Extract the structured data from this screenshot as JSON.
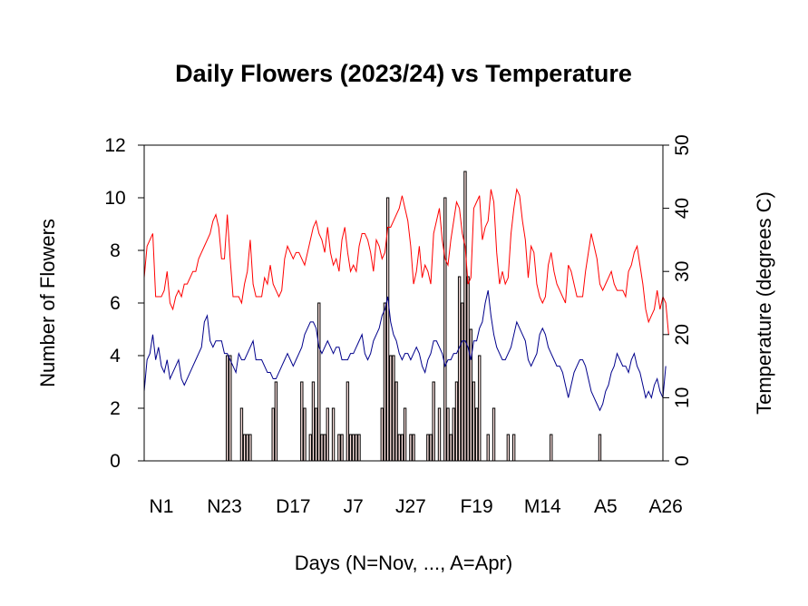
{
  "chart_data": {
    "type": "bar+line",
    "title": "Daily Flowers (2023/24) vs Temperature",
    "xlabel": "Days (N=Nov, ..., A=Apr)",
    "ylabel_left": "Number of Flowers",
    "ylabel_right": "Temperature (degrees C)",
    "ylim_left": [
      0,
      12
    ],
    "yticks_left": [
      "0",
      "2",
      "4",
      "6",
      "8",
      "10",
      "12"
    ],
    "ylim_right": [
      0,
      50
    ],
    "yticks_right": [
      "0",
      "10",
      "20",
      "30",
      "40",
      "50"
    ],
    "xlim": [
      1,
      182
    ],
    "xticks": [
      {
        "day": 7,
        "label": "N1"
      },
      {
        "day": 29,
        "label": "N23"
      },
      {
        "day": 53,
        "label": "D17"
      },
      {
        "day": 74,
        "label": "J7"
      },
      {
        "day": 94,
        "label": "J27"
      },
      {
        "day": 117,
        "label": "F19"
      },
      {
        "day": 140,
        "label": "M14"
      },
      {
        "day": 162,
        "label": "A5"
      },
      {
        "day": 183,
        "label": "A26"
      }
    ],
    "flowers": {
      "name": "Flowers",
      "color_fill": "#ffe4e1",
      "color_border": "#000000",
      "points": [
        [
          30,
          4
        ],
        [
          31,
          4
        ],
        [
          35,
          2
        ],
        [
          36,
          1
        ],
        [
          37,
          1
        ],
        [
          38,
          1
        ],
        [
          46,
          2
        ],
        [
          47,
          3
        ],
        [
          56,
          3
        ],
        [
          57,
          2
        ],
        [
          59,
          1
        ],
        [
          60,
          3
        ],
        [
          61,
          2
        ],
        [
          62,
          6
        ],
        [
          63,
          1
        ],
        [
          64,
          1
        ],
        [
          65,
          2
        ],
        [
          67,
          2
        ],
        [
          69,
          1
        ],
        [
          70,
          1
        ],
        [
          72,
          3
        ],
        [
          73,
          1
        ],
        [
          74,
          1
        ],
        [
          75,
          1
        ],
        [
          76,
          1
        ],
        [
          84,
          2
        ],
        [
          85,
          6
        ],
        [
          86,
          10
        ],
        [
          87,
          4
        ],
        [
          88,
          4
        ],
        [
          89,
          3
        ],
        [
          90,
          1
        ],
        [
          91,
          1
        ],
        [
          92,
          2
        ],
        [
          94,
          1
        ],
        [
          95,
          1
        ],
        [
          100,
          1
        ],
        [
          101,
          1
        ],
        [
          102,
          3
        ],
        [
          104,
          2
        ],
        [
          106,
          10
        ],
        [
          107,
          2
        ],
        [
          108,
          1
        ],
        [
          109,
          2
        ],
        [
          110,
          3
        ],
        [
          111,
          7
        ],
        [
          112,
          6
        ],
        [
          113,
          11
        ],
        [
          114,
          7
        ],
        [
          115,
          5
        ],
        [
          116,
          3
        ],
        [
          117,
          2
        ],
        [
          118,
          4
        ],
        [
          121,
          1
        ],
        [
          123,
          2
        ],
        [
          128,
          1
        ],
        [
          130,
          1
        ],
        [
          143,
          1
        ],
        [
          160,
          1
        ]
      ]
    },
    "series": [
      {
        "color": "#ff0000",
        "values": [
          29,
          34,
          35,
          36,
          26,
          26,
          26,
          27,
          30,
          25,
          24,
          26,
          27,
          26,
          28,
          28,
          29,
          30,
          30,
          32,
          33,
          34,
          35,
          36,
          38,
          39,
          37,
          32,
          32,
          39,
          32,
          26,
          26,
          26,
          25,
          28,
          30,
          35,
          28,
          26,
          26,
          26,
          29,
          28,
          31,
          28,
          27,
          26,
          27,
          32,
          34,
          33,
          32,
          33,
          33,
          32,
          31,
          33,
          35,
          37,
          38,
          36,
          35,
          33,
          37,
          33,
          31,
          32,
          30,
          35,
          37,
          33,
          30,
          31,
          30,
          34,
          36,
          36,
          35,
          33,
          30,
          35,
          34,
          32,
          33,
          37,
          37,
          38,
          39,
          40,
          42,
          40,
          38,
          34,
          28,
          30,
          34,
          29,
          31,
          30,
          28,
          36,
          38,
          40,
          35,
          32,
          31,
          35,
          38,
          41,
          40,
          36,
          34,
          28,
          29,
          40,
          41,
          42,
          35,
          37,
          38,
          43,
          41,
          33,
          28,
          30,
          28,
          29,
          36,
          40,
          43,
          42,
          38,
          35,
          29,
          34,
          33,
          28,
          26,
          25,
          26,
          31,
          33,
          30,
          28,
          27,
          26,
          25,
          31,
          30,
          28,
          26,
          26,
          26,
          30,
          33,
          36,
          34,
          32,
          28,
          27,
          28,
          29,
          30,
          28,
          27,
          27,
          27,
          26,
          30,
          31,
          33,
          34,
          31,
          28,
          24,
          22,
          23,
          24,
          27,
          24,
          26,
          25,
          20
        ]
      },
      {
        "color": "#00008b",
        "values": [
          11,
          16,
          17,
          20,
          16,
          18,
          15,
          14,
          16,
          13,
          14,
          15,
          16,
          13,
          12,
          13,
          14,
          15,
          16,
          17,
          18,
          22,
          23,
          19,
          18,
          19,
          19,
          19,
          17,
          17,
          16,
          15,
          14,
          17,
          16,
          16,
          17,
          18,
          19,
          16,
          16,
          16,
          15,
          14,
          14,
          13,
          13,
          14,
          15,
          16,
          17,
          16,
          15,
          16,
          17,
          18,
          20,
          21,
          22,
          22,
          21,
          18,
          17,
          18,
          19,
          18,
          17,
          18,
          18,
          16,
          16,
          16,
          17,
          17,
          18,
          19,
          20,
          17,
          16,
          17,
          19,
          20,
          21,
          23,
          24,
          26,
          22,
          20,
          19,
          17,
          16,
          17,
          17,
          16,
          17,
          18,
          17,
          15,
          14,
          16,
          17,
          19,
          19,
          18,
          17,
          15,
          16,
          16,
          17,
          17,
          18,
          19,
          19,
          18,
          16,
          19,
          19,
          21,
          22,
          25,
          27,
          23,
          20,
          18,
          17,
          16,
          16,
          17,
          18,
          20,
          22,
          21,
          20,
          19,
          16,
          15,
          16,
          17,
          20,
          21,
          20,
          18,
          17,
          16,
          15,
          15,
          14,
          12,
          10,
          12,
          14,
          15,
          16,
          16,
          15,
          13,
          11,
          10,
          9,
          8,
          9,
          11,
          12,
          14,
          15,
          17,
          16,
          15,
          15,
          14,
          16,
          17,
          15,
          14,
          12,
          10,
          11,
          10,
          12,
          13,
          11,
          10,
          15
        ]
      }
    ]
  }
}
